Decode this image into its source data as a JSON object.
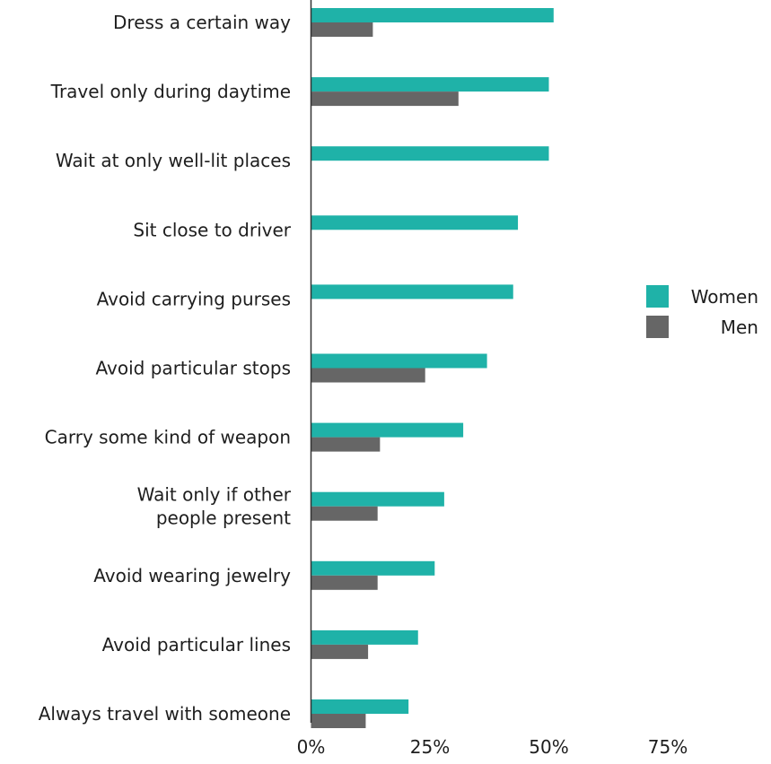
{
  "chart_data": {
    "type": "bar",
    "orientation": "horizontal",
    "categories": [
      [
        "Dress a certain way"
      ],
      [
        "Travel only during daytime"
      ],
      [
        "Wait at only well-lit places"
      ],
      [
        "Sit close to driver"
      ],
      [
        "Avoid carrying purses"
      ],
      [
        "Avoid particular stops"
      ],
      [
        "Carry some kind of weapon"
      ],
      [
        "Wait only if other",
        "people present"
      ],
      [
        "Avoid wearing jewelry"
      ],
      [
        "Avoid particular lines"
      ],
      [
        "Always travel with someone"
      ]
    ],
    "series": [
      {
        "name": "Women",
        "color": "#1fb2a8",
        "values": [
          51,
          50,
          50,
          43.5,
          42.5,
          37,
          32,
          28,
          26,
          22.5,
          20.5
        ]
      },
      {
        "name": "Men",
        "color": "#666666",
        "values": [
          13,
          31,
          0,
          0,
          0,
          24,
          14.5,
          14,
          14,
          12,
          11.5
        ]
      }
    ],
    "xticks": [
      {
        "value": 0,
        "label": "0%"
      },
      {
        "value": 25,
        "label": "25%"
      },
      {
        "value": 50,
        "label": "50%"
      },
      {
        "value": 75,
        "label": "75%"
      }
    ],
    "xlim": [
      0,
      75
    ],
    "grid": false,
    "legend_position": "right"
  }
}
